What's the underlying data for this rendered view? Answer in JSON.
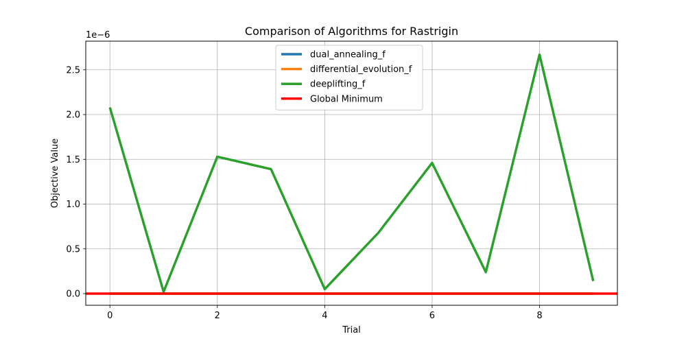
{
  "chart_data": {
    "type": "line",
    "title": "Comparison of Algorithms for Rastrigin",
    "xlabel": "Trial",
    "ylabel": "Objective Value",
    "y_offset_text": "1e−6",
    "y_scale_exponent": -6,
    "x": [
      0,
      1,
      2,
      3,
      4,
      5,
      6,
      7,
      8,
      9
    ],
    "xlim": [
      -0.45,
      9.45
    ],
    "ylim": [
      -0.13,
      2.82
    ],
    "x_ticks": [
      0,
      2,
      4,
      6,
      8
    ],
    "y_ticks": [
      0.0,
      0.5,
      1.0,
      1.5,
      2.0,
      2.5
    ],
    "y_tick_labels": [
      "0.0",
      "0.5",
      "1.0",
      "1.5",
      "2.0",
      "2.5"
    ],
    "grid": true,
    "legend_position": "top-center",
    "series": [
      {
        "name": "dual_annealing_f",
        "color": "#1f77b4",
        "values": [
          0,
          0,
          0,
          0,
          0,
          0,
          0,
          0,
          0,
          0
        ]
      },
      {
        "name": "differential_evolution_f",
        "color": "#ff7f0e",
        "values": [
          0,
          0,
          0,
          0,
          0,
          0,
          0,
          0,
          0,
          0
        ]
      },
      {
        "name": "deeplifting_f",
        "color": "#2ca02c",
        "values": [
          2.08,
          0.02,
          1.53,
          1.39,
          0.05,
          0.68,
          1.46,
          0.24,
          2.67,
          0.14
        ]
      }
    ],
    "hlines": [
      {
        "name": "Global Minimum",
        "color": "#ff0000",
        "value": 0
      }
    ]
  }
}
